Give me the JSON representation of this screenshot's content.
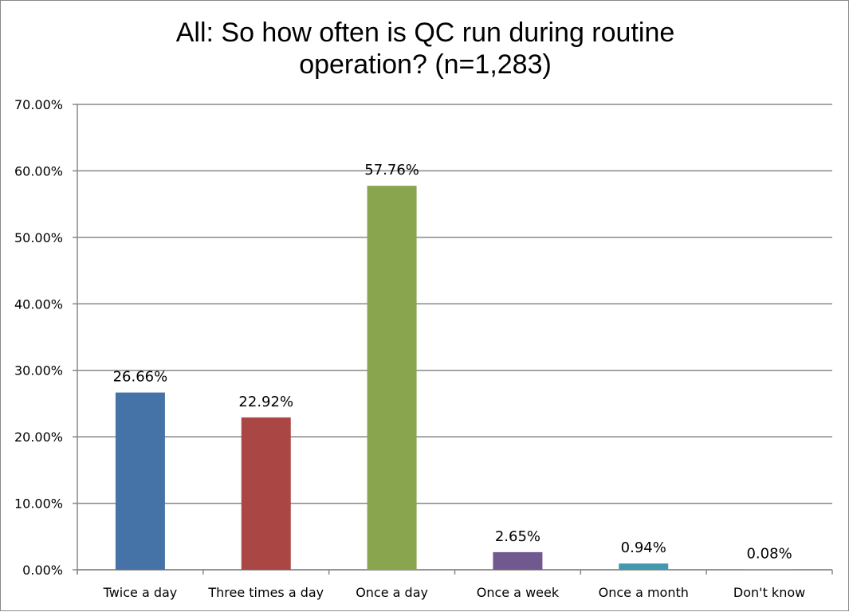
{
  "chart_data": {
    "type": "bar",
    "title_lines": [
      "All: So how often is QC run during routine",
      "operation? (n=1,283)"
    ],
    "categories": [
      "Twice a day",
      "Three times a day",
      "Once a day",
      "Once a week",
      "Once a month",
      "Don't know"
    ],
    "values": [
      26.66,
      22.92,
      57.76,
      2.65,
      0.94,
      0.08
    ],
    "data_labels": [
      "26.66%",
      "22.92%",
      "57.76%",
      "2.65%",
      "0.94%",
      "0.08%"
    ],
    "colors": [
      "#4572a7",
      "#aa4643",
      "#89a54e",
      "#71588f",
      "#4198af",
      "#db843d"
    ],
    "ylim": [
      0,
      70
    ],
    "y_ticks": [
      0,
      10,
      20,
      30,
      40,
      50,
      60,
      70
    ],
    "y_tick_labels": [
      "0.00%",
      "10.00%",
      "20.00%",
      "30.00%",
      "40.00%",
      "50.00%",
      "60.00%",
      "70.00%"
    ],
    "xlabel": "",
    "ylabel": "",
    "grid": true,
    "legend": "none"
  }
}
